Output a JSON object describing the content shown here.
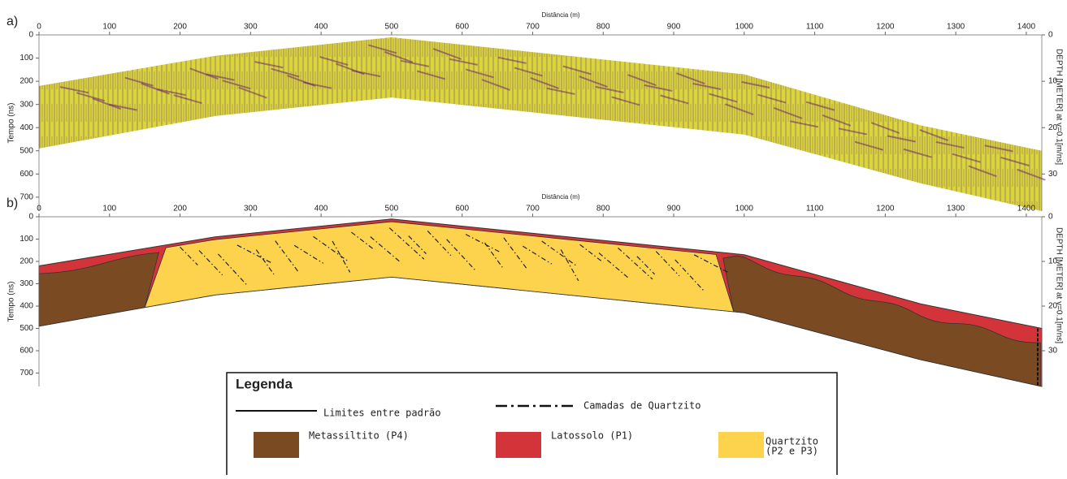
{
  "panels": [
    {
      "label": "a)",
      "x_title": "Distância (m)",
      "y_title": "Tempo (ns)",
      "y2_title": "DEPTH [METER] at v=0.1[m/ns]",
      "xlim": [
        0,
        1422
      ],
      "xticks": [
        0,
        100,
        200,
        300,
        400,
        500,
        600,
        700,
        800,
        900,
        1000,
        1100,
        1200,
        1300,
        1400
      ],
      "ylim": [
        0,
        760
      ],
      "yticks": [
        0,
        100,
        200,
        300,
        400,
        500,
        600,
        700
      ],
      "y2lim": [
        0,
        38
      ],
      "y2ticks": [
        0,
        10,
        20,
        30
      ]
    },
    {
      "label": "b)",
      "x_title": "Distância (m)",
      "y_title": "Tempo (ns)",
      "y2_title": "DEPTH [METER] at v=0.1[m/ns]",
      "xlim": [
        0,
        1422
      ],
      "xticks": [
        0,
        100,
        200,
        300,
        400,
        500,
        600,
        700,
        800,
        900,
        1000,
        1100,
        1200,
        1300,
        1400
      ],
      "ylim": [
        0,
        760
      ],
      "yticks": [
        0,
        100,
        200,
        300,
        400,
        500,
        600,
        700
      ],
      "y2lim": [
        0,
        38
      ],
      "y2ticks": [
        0,
        10,
        20,
        30
      ]
    }
  ],
  "profile": {
    "x": [
      0,
      250,
      500,
      1000,
      1250,
      1422
    ],
    "top": [
      220,
      90,
      10,
      170,
      390,
      500
    ],
    "base": [
      490,
      350,
      270,
      430,
      640,
      760
    ]
  },
  "legend": {
    "title": "Legenda",
    "items": [
      {
        "label": [
          "Limites entre padrão"
        ],
        "kind": "line"
      },
      {
        "label": [
          "Camadas de Quartzito"
        ],
        "kind": "dashdot"
      },
      {
        "label": [
          "Metassiltito (P4)"
        ],
        "kind": "box",
        "color": "#7a4a22"
      },
      {
        "label": [
          "Latossolo (P1)"
        ],
        "kind": "box",
        "color": "#d2343a"
      },
      {
        "label": [
          "Quartzito",
          "(P2 e P3)"
        ],
        "kind": "box",
        "color": "#fdd34e"
      }
    ]
  }
}
